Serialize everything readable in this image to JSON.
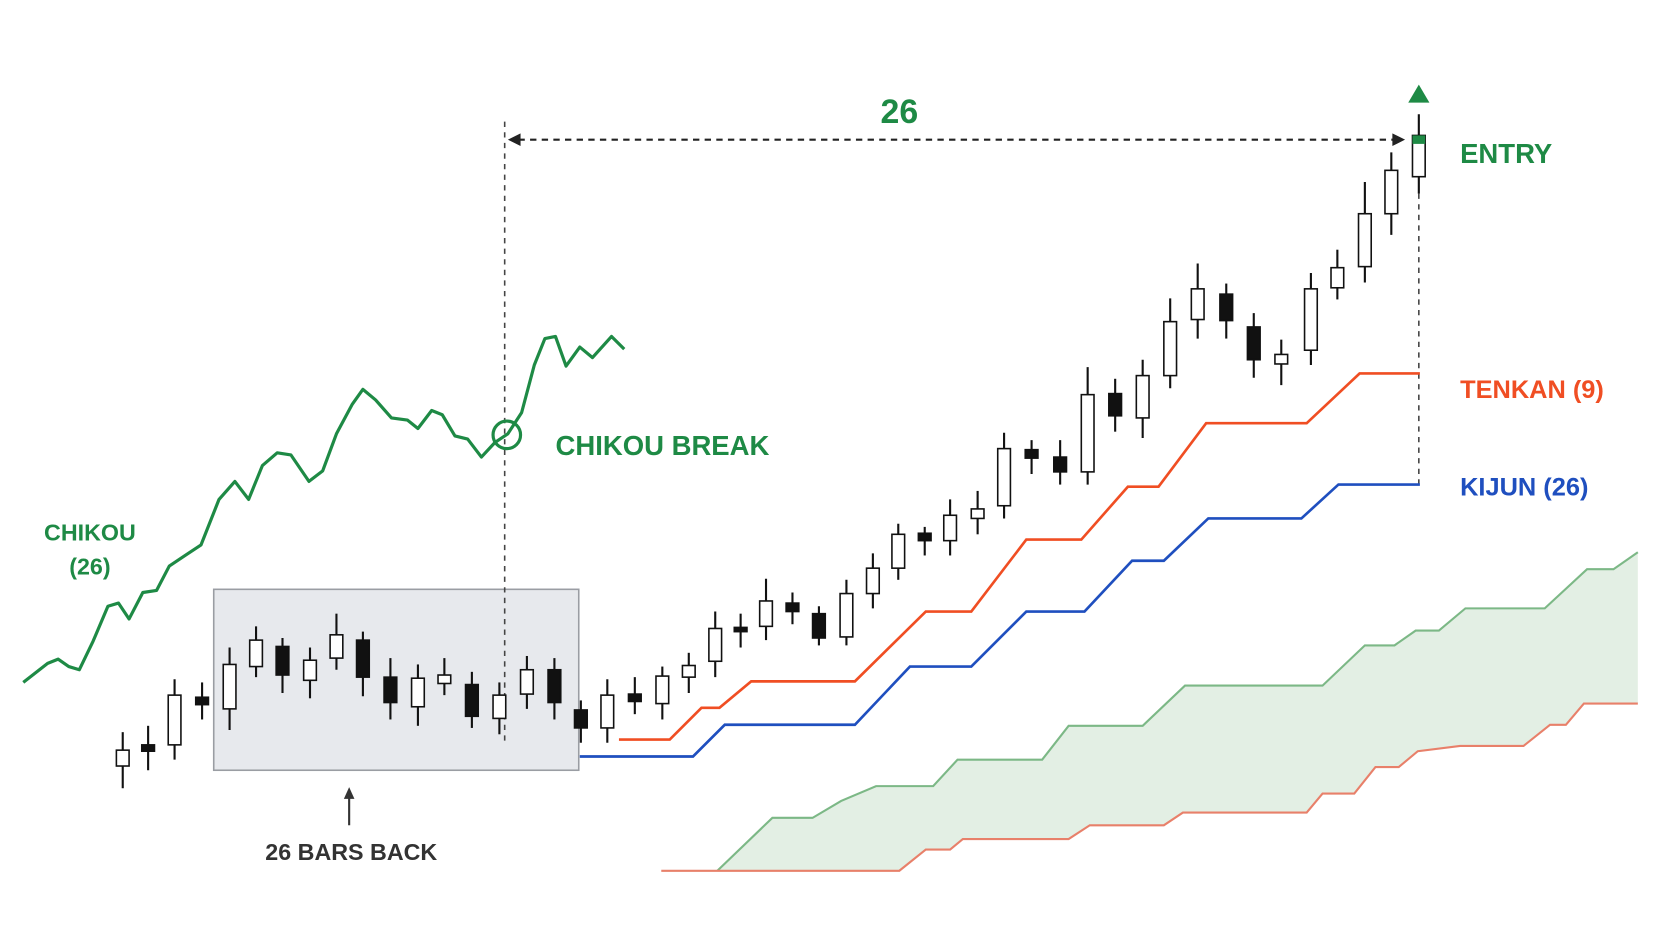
{
  "labels": {
    "span": "26",
    "entry": "ENTRY",
    "tenkan": "TENKAN (9)",
    "kijun": "KIJUN (26)",
    "chikou_line1": "CHIKOU",
    "chikou_line2": "(26)",
    "chikou_break": "CHIKOU BREAK",
    "bars_back": "26 BARS BACK"
  }
}
